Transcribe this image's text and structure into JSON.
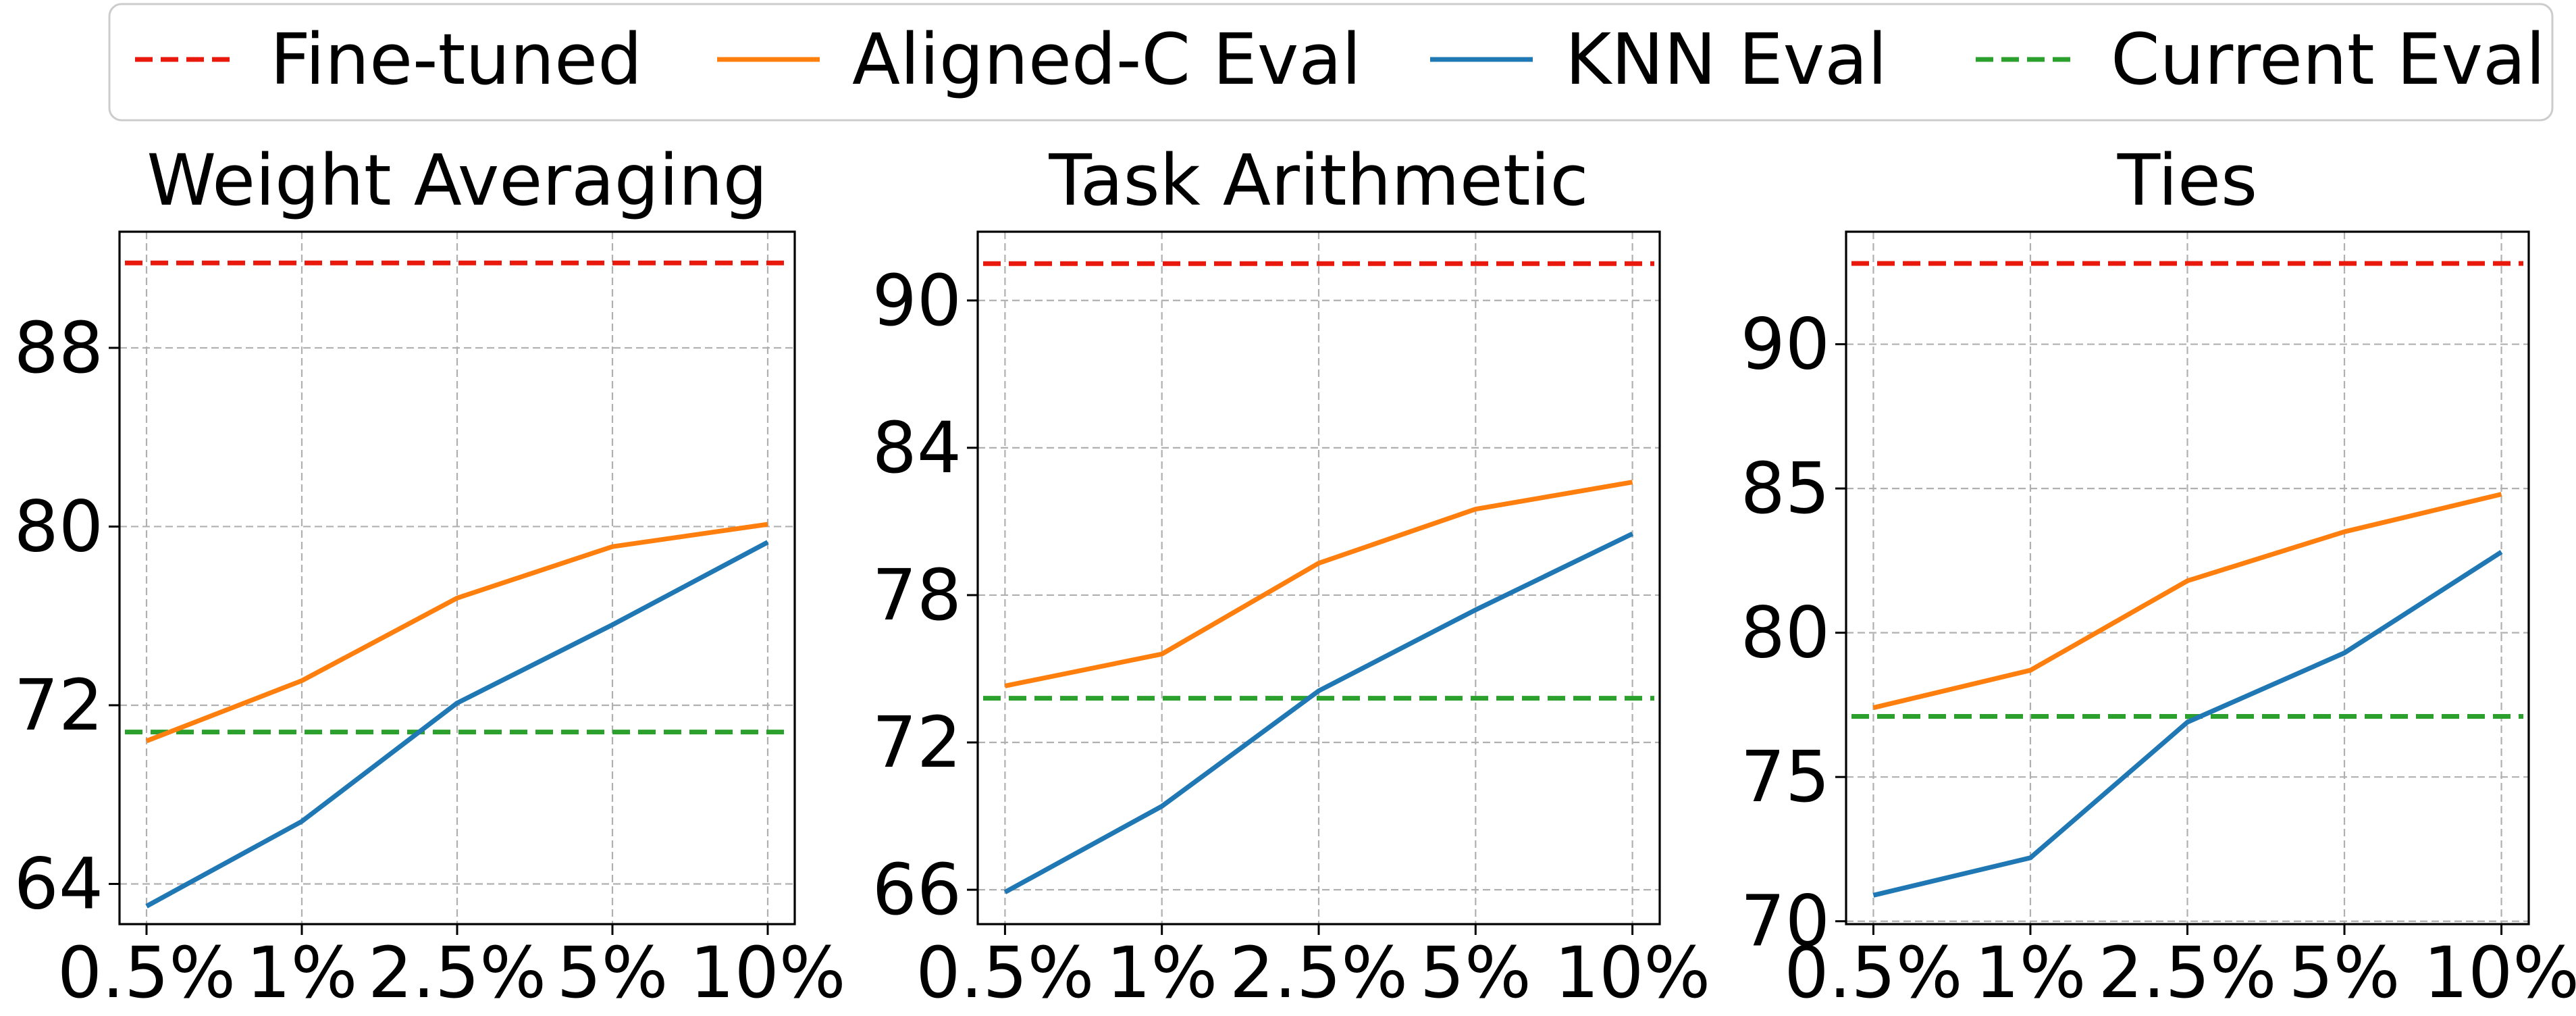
{
  "colors": {
    "finetuned": "#e8180c",
    "aligned": "#ff7f0e",
    "knn": "#1f77b4",
    "current": "#2ca02c"
  },
  "legend": [
    {
      "label": "Fine-tuned",
      "color": "#e8180c",
      "style": "dashed"
    },
    {
      "label": "Aligned-C Eval",
      "color": "#ff7f0e",
      "style": "solid"
    },
    {
      "label": "KNN Eval",
      "color": "#1f77b4",
      "style": "solid"
    },
    {
      "label": "Current Eval",
      "color": "#2ca02c",
      "style": "dashed"
    }
  ],
  "chart_data": [
    {
      "type": "line",
      "title": "Weight Averaging",
      "categories": [
        "0.5%",
        "1%",
        "2.5%",
        "5%",
        "10%"
      ],
      "ylim": [
        62.2,
        93.2
      ],
      "yticks": [
        64,
        72,
        80,
        88
      ],
      "grid": true,
      "reference_lines": [
        {
          "name": "Fine-tuned",
          "value": 91.8,
          "color": "#e8180c"
        },
        {
          "name": "Current Eval",
          "value": 70.8,
          "color": "#2ca02c"
        }
      ],
      "series": [
        {
          "name": "Aligned-C Eval",
          "values": [
            70.4,
            73.1,
            76.8,
            79.1,
            80.1
          ],
          "color": "#ff7f0e"
        },
        {
          "name": "KNN Eval",
          "values": [
            63.0,
            66.8,
            72.1,
            75.6,
            79.3
          ],
          "color": "#1f77b4"
        }
      ]
    },
    {
      "type": "line",
      "title": "Task Arithmetic",
      "categories": [
        "0.5%",
        "1%",
        "2.5%",
        "5%",
        "10%"
      ],
      "ylim": [
        64.6,
        92.8
      ],
      "yticks": [
        66,
        72,
        78,
        84,
        90
      ],
      "grid": true,
      "reference_lines": [
        {
          "name": "Fine-tuned",
          "value": 91.5,
          "color": "#e8180c"
        },
        {
          "name": "Current Eval",
          "value": 73.8,
          "color": "#2ca02c"
        }
      ],
      "series": [
        {
          "name": "Aligned-C Eval",
          "values": [
            74.3,
            75.6,
            79.3,
            81.5,
            82.6
          ],
          "color": "#ff7f0e"
        },
        {
          "name": "KNN Eval",
          "values": [
            65.9,
            69.4,
            74.1,
            77.4,
            80.5
          ],
          "color": "#1f77b4"
        }
      ]
    },
    {
      "type": "line",
      "title": "Ties",
      "categories": [
        "0.5%",
        "1%",
        "2.5%",
        "5%",
        "10%"
      ],
      "ylim": [
        69.9,
        93.9
      ],
      "yticks": [
        70,
        75,
        80,
        85,
        90
      ],
      "grid": true,
      "reference_lines": [
        {
          "name": "Fine-tuned",
          "value": 92.8,
          "color": "#e8180c"
        },
        {
          "name": "Current Eval",
          "value": 77.1,
          "color": "#2ca02c"
        }
      ],
      "series": [
        {
          "name": "Aligned-C Eval",
          "values": [
            77.4,
            78.7,
            81.8,
            83.5,
            84.8
          ],
          "color": "#ff7f0e"
        },
        {
          "name": "KNN Eval",
          "values": [
            70.9,
            72.2,
            76.9,
            79.3,
            82.8
          ],
          "color": "#1f77b4"
        }
      ]
    }
  ]
}
